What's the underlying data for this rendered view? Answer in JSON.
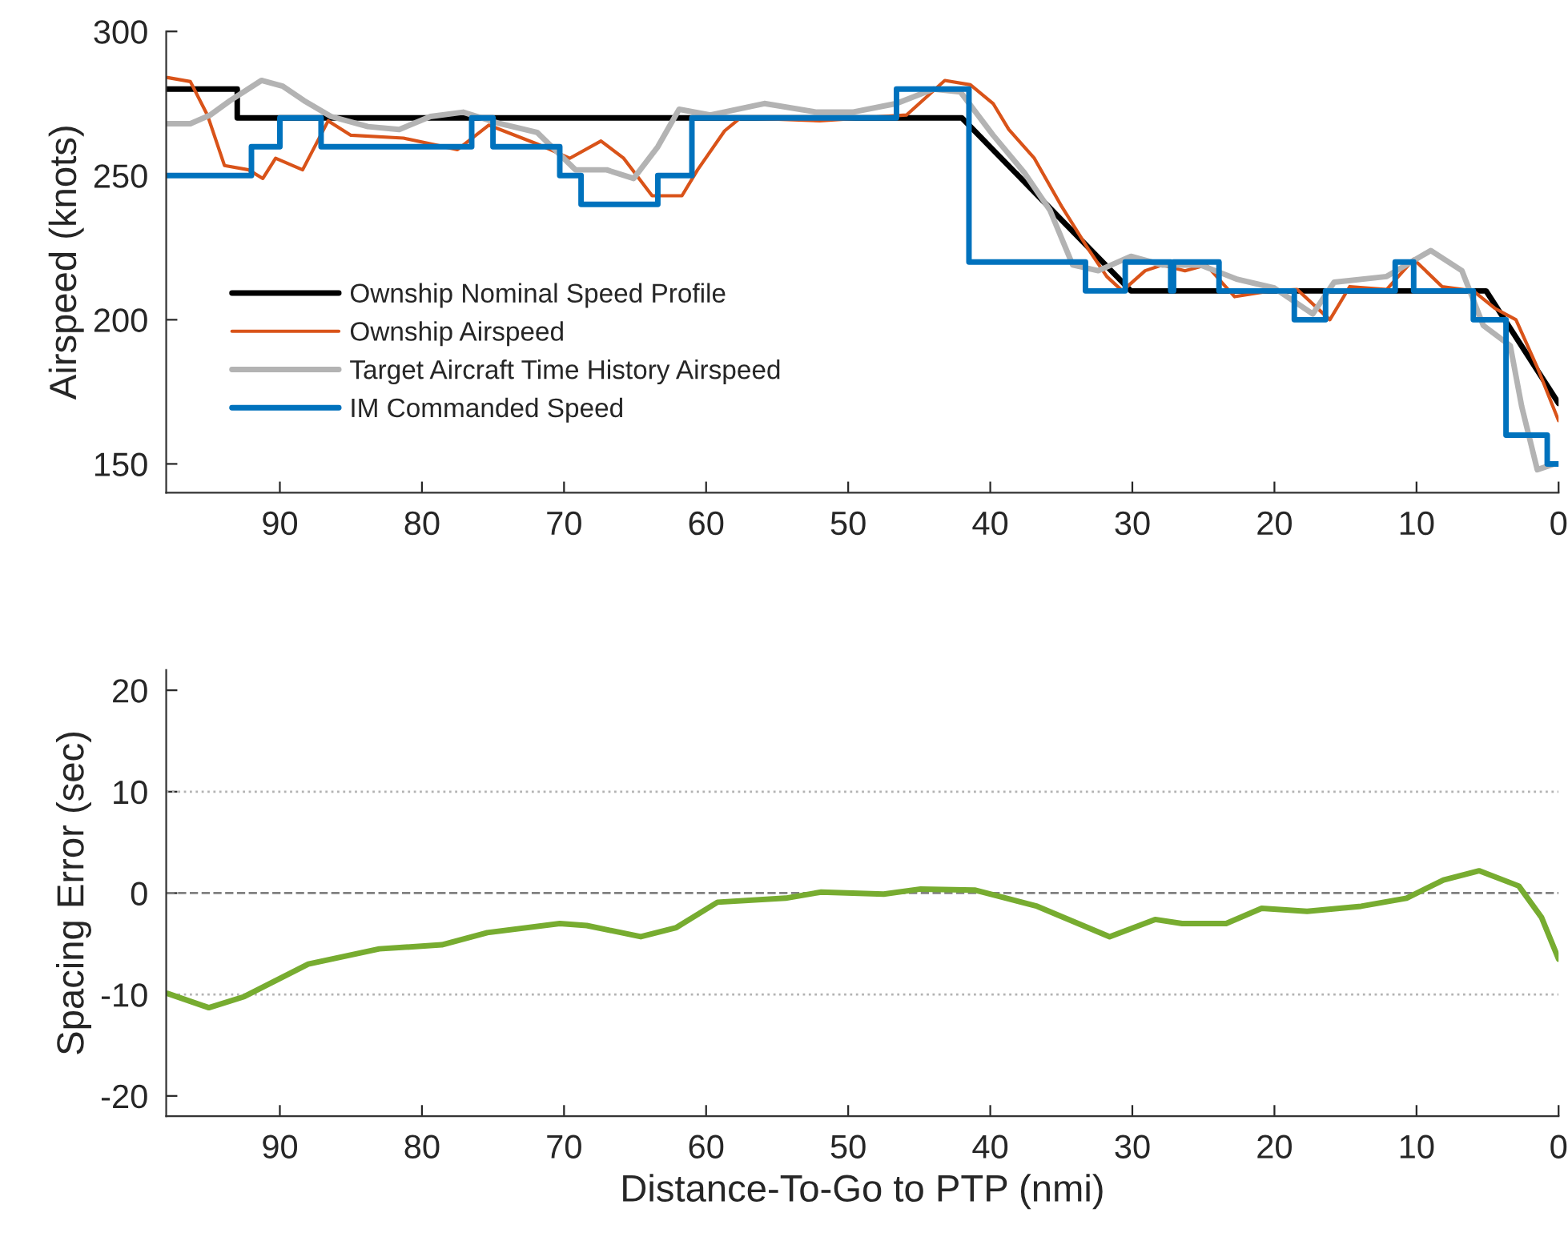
{
  "chart_data": [
    {
      "type": "line",
      "ylabel": "Airspeed (knots)",
      "xlim": [
        98,
        0
      ],
      "xticks": [
        90,
        80,
        70,
        60,
        50,
        40,
        30,
        20,
        10,
        0
      ],
      "ylim": [
        140,
        300
      ],
      "yticks": [
        150,
        200,
        250,
        300
      ],
      "grid": false,
      "legend": "bottom left",
      "series": [
        {
          "name": "Ownship Nominal Speed Profile",
          "color": "#000000",
          "type": "line",
          "x": [
            98,
            93,
            93,
            42,
            30.1,
            5.1,
            0
          ],
          "values": [
            280,
            280,
            270,
            270,
            210,
            210,
            171
          ]
        },
        {
          "name": "Ownship Airspeed",
          "color": "#d95319",
          "type": "line",
          "x": [
            97.9,
            96.3,
            95.1,
            93.9,
            92.2,
            91.2,
            90.3,
            88.4,
            86.6,
            85,
            81.3,
            77.5,
            75.3,
            71.9,
            69.6,
            67.4,
            65.8,
            63.8,
            61.7,
            60.6,
            58.7,
            57.6,
            52,
            45.9,
            43.2,
            41.4,
            39.8,
            38.7,
            36.9,
            35,
            33.1,
            31.8,
            30.7,
            29.1,
            27.9,
            26.3,
            24.8,
            22.8,
            20.3,
            18.4,
            16.1,
            14.7,
            12.1,
            10.2,
            8.2,
            6.0,
            4.5,
            3.0,
            1.5,
            0
          ],
          "values": [
            284,
            282.6,
            271,
            253.5,
            252,
            249,
            256,
            252,
            269,
            264,
            263,
            259,
            267.5,
            261,
            256,
            262,
            256,
            243,
            243,
            252,
            265.5,
            270,
            269,
            271,
            283,
            281.5,
            275,
            266,
            256,
            239.5,
            224.5,
            215,
            210,
            217,
            219,
            217,
            219,
            208,
            210,
            210.5,
            200,
            211.5,
            210.5,
            221,
            211.5,
            210,
            204,
            200,
            183.5,
            165
          ]
        },
        {
          "name": "Target Aircraft Time History Airspeed",
          "color": "#b3b3b3",
          "type": "line",
          "x": [
            97.9,
            96.3,
            94.9,
            93.5,
            91.3,
            89.8,
            88.3,
            86.4,
            83.8,
            81.6,
            79.4,
            77.1,
            74.5,
            71.9,
            69.2,
            67,
            65.1,
            63.4,
            61.9,
            59.7,
            55.9,
            52.2,
            49.7,
            46.6,
            44,
            42.1,
            39.8,
            37.6,
            35.8,
            34.2,
            32.4,
            30.1,
            27.9,
            25.2,
            22.6,
            20,
            17.3,
            15.8,
            12.1,
            9,
            6.8,
            5.3,
            3.4,
            2.6,
            1.5,
            0.3
          ],
          "values": [
            268,
            268,
            271,
            276,
            283,
            281,
            276,
            270.5,
            267,
            266,
            270.5,
            272,
            268,
            265,
            252,
            252,
            249,
            260,
            273,
            271,
            275,
            272,
            272,
            275,
            280,
            279,
            264,
            251,
            238,
            219,
            217,
            222,
            219,
            219,
            214,
            211,
            202,
            213,
            215,
            224,
            217,
            198,
            191,
            170,
            148,
            150
          ]
        },
        {
          "name": "IM Commanded Speed",
          "color": "#0072bd",
          "type": "step",
          "x": [
            98,
            92,
            90,
            87.1,
            76.5,
            75,
            70.3,
            68.8,
            63.4,
            61,
            46.6,
            41.5,
            33.3,
            30.5,
            27.3,
            27.1,
            23.9,
            18.6,
            16.4,
            11.5,
            10.2,
            6.0,
            3.7,
            0.8,
            0
          ],
          "values": [
            250,
            260,
            270,
            260,
            270,
            260,
            250,
            240,
            250,
            270,
            280,
            220,
            210,
            220,
            210,
            220,
            210,
            200,
            210,
            220,
            210,
            200,
            160,
            150,
            150
          ]
        }
      ]
    },
    {
      "type": "line",
      "ylabel": "Spacing Error (sec)",
      "xlabel": "Distance-To-Go to PTP (nmi)",
      "xlim": [
        98,
        0
      ],
      "xticks": [
        90,
        80,
        70,
        60,
        50,
        40,
        30,
        20,
        10,
        0
      ],
      "ylim": [
        -22,
        22
      ],
      "yticks": [
        -20,
        -10,
        0,
        10,
        20
      ],
      "grid": false,
      "ref_lines": [
        {
          "axis": "y",
          "value": 10,
          "color": "#b3b3b3",
          "line_style": "dotted"
        },
        {
          "axis": "y",
          "value": 0,
          "color": "#808080",
          "line_style": "dashed"
        },
        {
          "axis": "y",
          "value": -10,
          "color": "#b3b3b3",
          "line_style": "dotted"
        }
      ],
      "series": [
        {
          "color": "#77ac30",
          "x": [
            97.9,
            95,
            92.5,
            88,
            83,
            78.6,
            75.4,
            70.3,
            68.4,
            64.6,
            62.1,
            59.2,
            54.4,
            51.9,
            47.5,
            44.9,
            41.1,
            36.7,
            31.6,
            28.4,
            26.5,
            23.4,
            20.9,
            17.7,
            13.9,
            10.7,
            8.1,
            5.6,
            2.8,
            1.2,
            0
          ],
          "values": [
            -9.9,
            -11.3,
            -10.2,
            -7,
            -5.5,
            -5.1,
            -3.9,
            -3,
            -3.2,
            -4.3,
            -3.4,
            -0.9,
            -0.5,
            0.1,
            -0.1,
            0.4,
            0.3,
            -1.3,
            -4.3,
            -2.6,
            -3,
            -3,
            -1.5,
            -1.8,
            -1.3,
            -0.5,
            1.3,
            2.2,
            0.7,
            -2.4,
            -6.5
          ]
        }
      ]
    }
  ]
}
